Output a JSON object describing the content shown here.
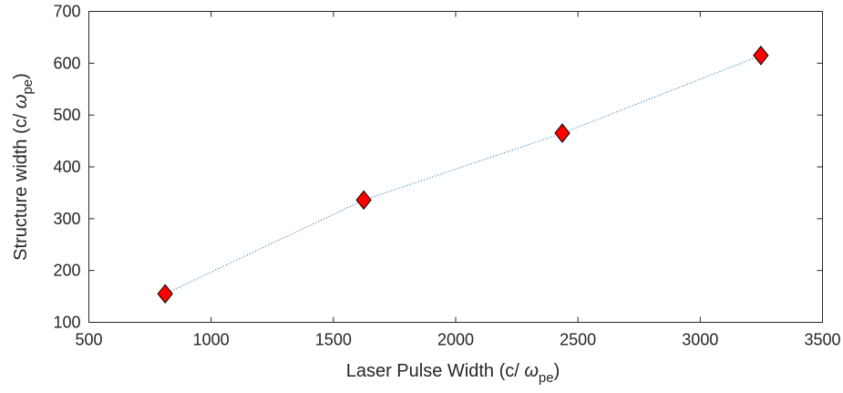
{
  "chart_data": {
    "type": "scatter",
    "title": "",
    "xlabel": {
      "main": "Laser Pulse Width (c/ ",
      "symbol": "ω",
      "subscript": "pe",
      "close": ")"
    },
    "ylabel": {
      "main": "Structure width (c/ ",
      "symbol": "ω",
      "subscript": "pe",
      "close": ")"
    },
    "xlim": [
      500,
      3500
    ],
    "ylim": [
      100,
      700
    ],
    "xticks": [
      500,
      1000,
      1500,
      2000,
      2500,
      3000,
      3500
    ],
    "yticks": [
      100,
      200,
      300,
      400,
      500,
      600,
      700
    ],
    "grid": false,
    "legend": "none",
    "series": [
      {
        "x": [
          812,
          1624,
          2436,
          3248
        ],
        "y": [
          155,
          336,
          465,
          615
        ],
        "marker": "diamond",
        "marker_color": "#ff0000",
        "line_style": "dotted",
        "line_color": "#2b7bb9"
      }
    ]
  }
}
